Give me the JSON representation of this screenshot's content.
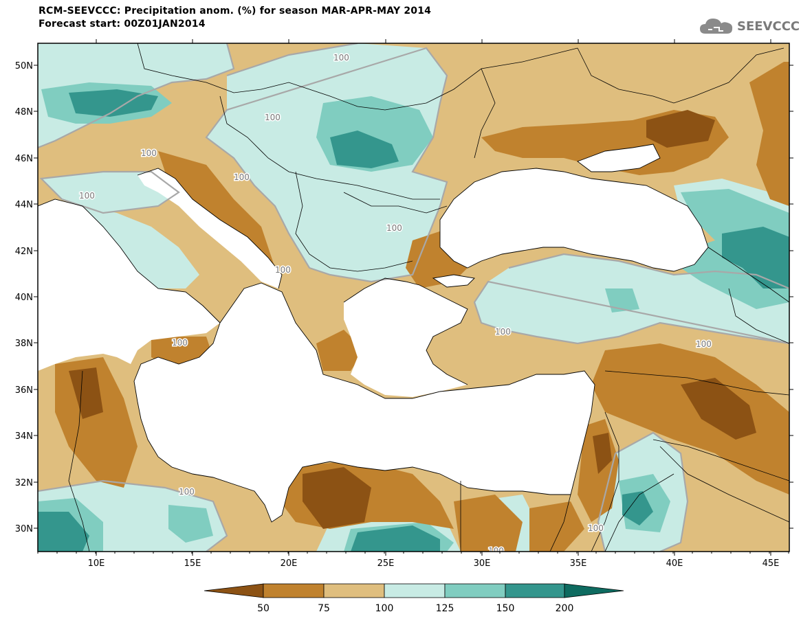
{
  "header": {
    "title_line1": "RCM-SEEVCCC: Precipitation anom. (%) for season MAR-APR-MAY 2014",
    "title_line2": "Forecast start: 00Z01JAN2014",
    "logo_text": "SEEVCCC",
    "logo_icon": "cloud-icon"
  },
  "map": {
    "lon_ticks": [
      "10E",
      "15E",
      "20E",
      "25E",
      "30E",
      "35E",
      "40E",
      "45E"
    ],
    "lat_ticks": [
      "50N",
      "48N",
      "46N",
      "44N",
      "42N",
      "40N",
      "38N",
      "36N",
      "34N",
      "32N",
      "30N"
    ],
    "contour_labels": [
      "100",
      "100",
      "100",
      "100",
      "100",
      "100",
      "100",
      "100",
      "100",
      "100",
      "100",
      "100",
      "100"
    ],
    "colors": {
      "sea": "#ffffff",
      "c_lt50": "#8c5214",
      "c_50_75": "#c0822e",
      "c_75_100": "#dfbe7e",
      "c_100_125": "#c8ebe4",
      "c_125_150": "#80cdc0",
      "c_150_200": "#34968d",
      "c_gt200": "#0e6b60",
      "contour100": "#a8a8a8"
    }
  },
  "colorbar": {
    "labels": [
      "50",
      "75",
      "100",
      "125",
      "150",
      "200"
    ],
    "colors": [
      "#8c5214",
      "#c0822e",
      "#dfbe7e",
      "#c8ebe4",
      "#80cdc0",
      "#34968d",
      "#0e6b60"
    ]
  }
}
